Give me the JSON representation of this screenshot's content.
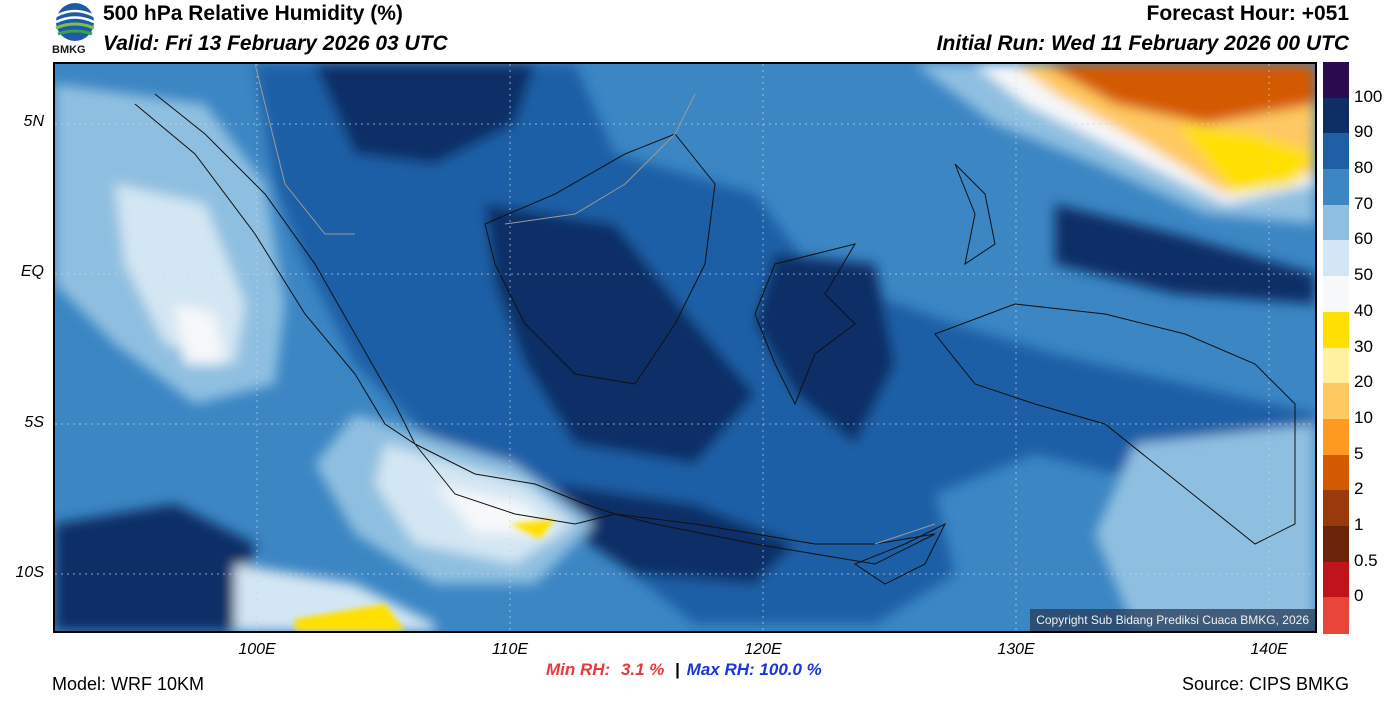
{
  "header": {
    "title": "500 hPa Relative Humidity (%)",
    "valid": "Valid: Fri 13 February 2026 03 UTC",
    "forecast_hour": "Forecast Hour: +051",
    "initial_run": "Initial Run: Wed 11 February 2026 00 UTC",
    "logo_text": "BMKG"
  },
  "map": {
    "y_labels": [
      "5N",
      "EQ",
      "5S",
      "10S"
    ],
    "x_labels": [
      "100E",
      "110E",
      "120E",
      "130E",
      "140E"
    ],
    "copyright": "Copyright Sub Bidang Prediksi Cuaca BMKG, 2026"
  },
  "colorbar": {
    "labels": [
      "100",
      "90",
      "80",
      "70",
      "60",
      "50",
      "40",
      "30",
      "20",
      "10",
      "5",
      "2",
      "1",
      "0.5",
      "0"
    ],
    "colors": [
      "#2b0b4f",
      "#0e2f66",
      "#1f5fa6",
      "#3c86c4",
      "#8fbfe0",
      "#d3e6f3",
      "#f6f8fa",
      "#ffe000",
      "#fff1a0",
      "#ffc860",
      "#ff9a20",
      "#d45a00",
      "#9a3a0a",
      "#6a2408",
      "#c0141a",
      "#e8463a"
    ]
  },
  "stats": {
    "min_label": "Min RH:",
    "min_value": "3.1 %",
    "separator": "|",
    "max_label": "Max RH:",
    "max_value": "100.0 %"
  },
  "footer": {
    "model": "Model: WRF 10KM",
    "source": "Source: CIPS BMKG"
  }
}
